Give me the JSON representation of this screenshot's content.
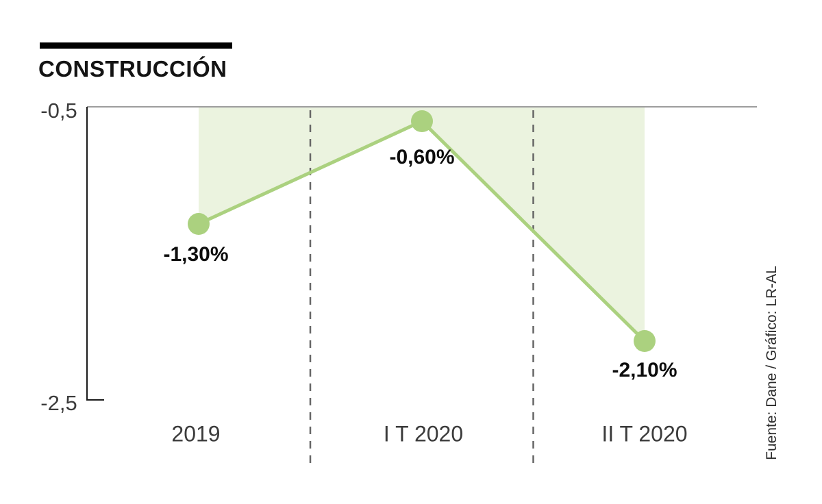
{
  "chart_data": {
    "type": "line",
    "title": "CONSTRUCCIÓN",
    "categories": [
      "2019",
      "I T 2020",
      "II T 2020"
    ],
    "values": [
      -1.3,
      -0.6,
      -2.1
    ],
    "point_labels": [
      "-1,30%",
      "-0,60%",
      "-2,10%"
    ],
    "yticks": [
      "-0,5",
      "-2,5"
    ],
    "ylim": [
      -2.5,
      -0.5
    ],
    "grid": "single top gridline at -0.5, dashed vertical separators between categories",
    "legend": "none",
    "source": "Fuente: Dane / Gráfico: LR-AL",
    "line_color": "#abd17f",
    "marker_color": "#abd17f",
    "fill_color": "#ebf3df",
    "axis_color": "#1a1a1a",
    "gridline_color": "#9d9d9d",
    "separator_color": "#666666"
  }
}
